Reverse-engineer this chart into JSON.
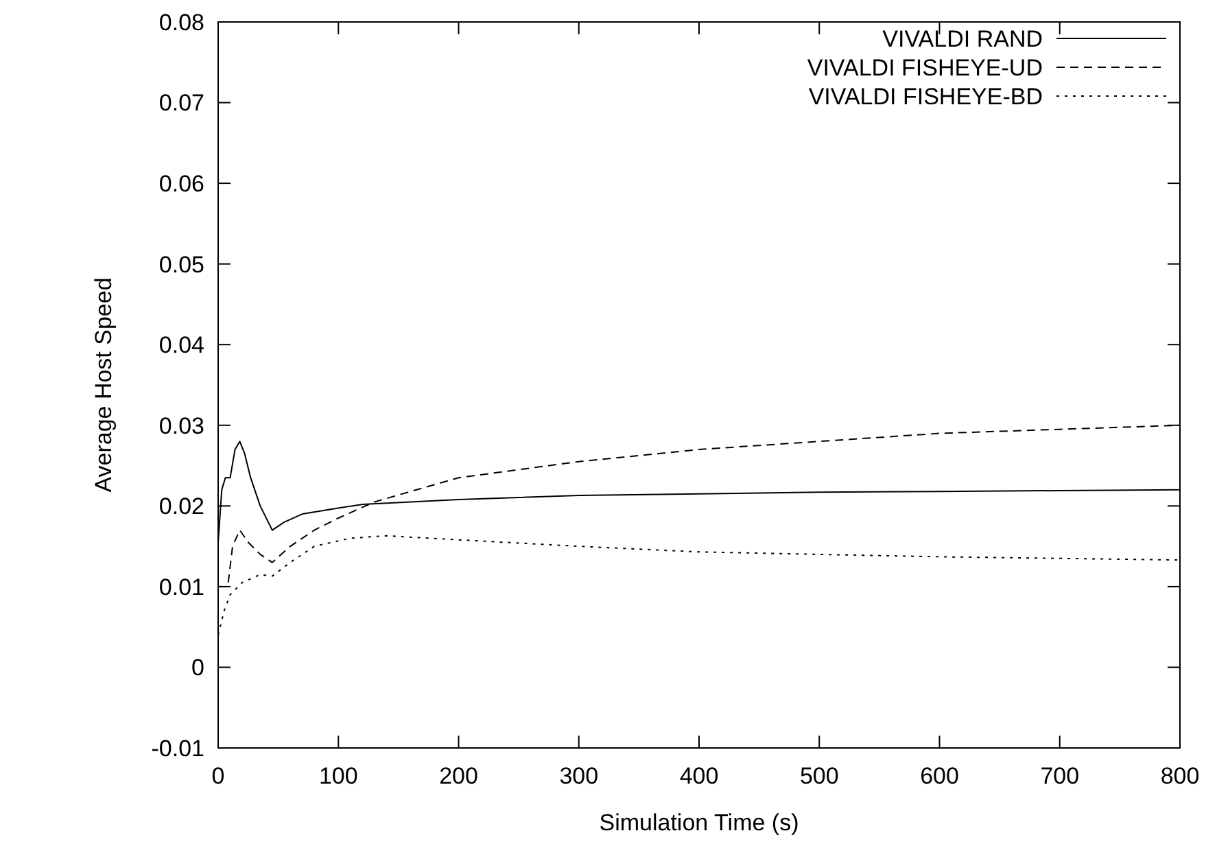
{
  "chart_data": {
    "type": "line",
    "xlabel": "Simulation Time (s)",
    "ylabel": "Average Host Speed",
    "xlim": [
      0,
      800
    ],
    "xticks": [
      0,
      100,
      200,
      300,
      400,
      500,
      600,
      700,
      800
    ],
    "ylim": [
      -0.01,
      0.08
    ],
    "yticks": [
      -0.01,
      0,
      0.01,
      0.02,
      0.03,
      0.04,
      0.05,
      0.06,
      0.07,
      0.08
    ],
    "legend": "top right",
    "grid": false,
    "series": [
      {
        "name": "VIVALDI RAND",
        "color": "#000000",
        "line_style": "solid",
        "x": [
          0,
          3,
          6,
          10,
          14,
          18,
          22,
          27,
          35,
          45,
          55,
          70,
          90,
          120,
          200,
          300,
          400,
          500,
          600,
          700,
          800
        ],
        "values": [
          0.0155,
          0.022,
          0.0235,
          0.0235,
          0.027,
          0.028,
          0.0265,
          0.0235,
          0.02,
          0.017,
          0.018,
          0.019,
          0.0195,
          0.0202,
          0.0208,
          0.0213,
          0.0215,
          0.0217,
          0.0218,
          0.0219,
          0.022
        ]
      },
      {
        "name": "VIVALDI FISHEYE-UD",
        "color": "#000000",
        "line_style": "dashed",
        "x": [
          0,
          8,
          12,
          18,
          25,
          35,
          45,
          60,
          80,
          100,
          130,
          200,
          300,
          400,
          500,
          600,
          700,
          800
        ],
        "values": [
          0.01,
          0.01,
          0.015,
          0.017,
          0.0155,
          0.014,
          0.013,
          0.015,
          0.017,
          0.0185,
          0.0205,
          0.0235,
          0.0255,
          0.027,
          0.028,
          0.029,
          0.0295,
          0.03
        ]
      },
      {
        "name": "VIVALDI FISHEYE-BD",
        "color": "#000000",
        "line_style": "dotted",
        "x": [
          0,
          5,
          10,
          20,
          35,
          45,
          60,
          80,
          110,
          140,
          200,
          300,
          400,
          500,
          600,
          700,
          800
        ],
        "values": [
          0.004,
          0.007,
          0.009,
          0.0105,
          0.0115,
          0.0113,
          0.013,
          0.015,
          0.016,
          0.0163,
          0.0158,
          0.015,
          0.0143,
          0.014,
          0.0137,
          0.0135,
          0.0133
        ]
      }
    ]
  }
}
